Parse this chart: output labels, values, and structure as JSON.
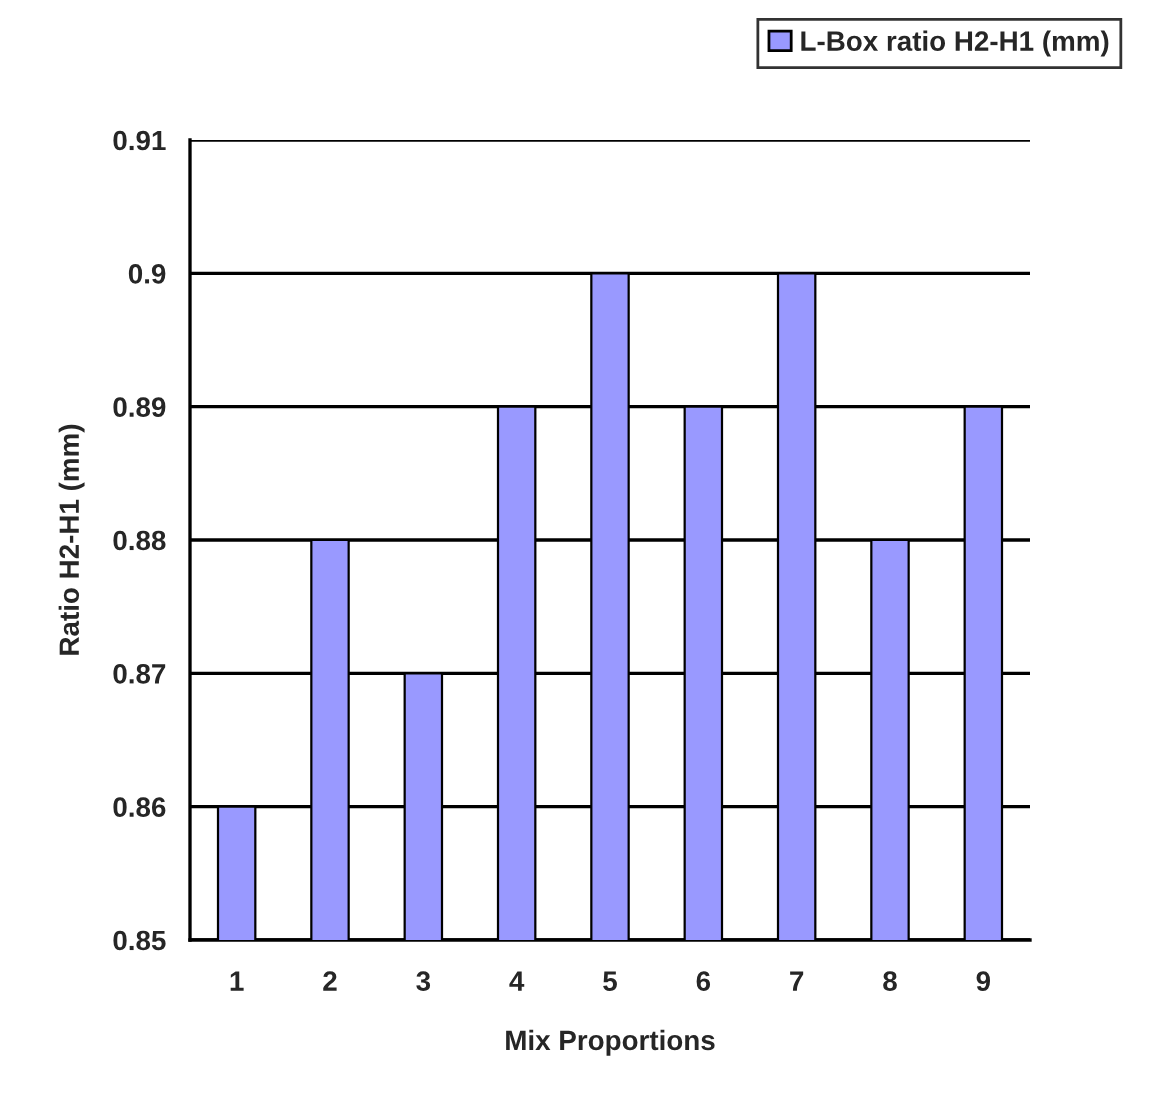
{
  "chart_data": {
    "type": "bar",
    "xlabel": "Mix Proportions",
    "ylabel": "Ratio H2-H1 (mm)",
    "categories": [
      "1",
      "2",
      "3",
      "4",
      "5",
      "6",
      "7",
      "8",
      "9"
    ],
    "series": [
      {
        "name": "L-Box ratio H2-H1 (mm)",
        "color": "#9999ff",
        "values": [
          0.86,
          0.88,
          0.87,
          0.89,
          0.9,
          0.89,
          0.9,
          0.88,
          0.89
        ]
      }
    ],
    "ylim": [
      0.85,
      0.91
    ],
    "yticks": [
      0.85,
      0.86,
      0.87,
      0.88,
      0.89,
      0.9,
      0.91
    ],
    "grid": "y",
    "legend": "top right"
  }
}
